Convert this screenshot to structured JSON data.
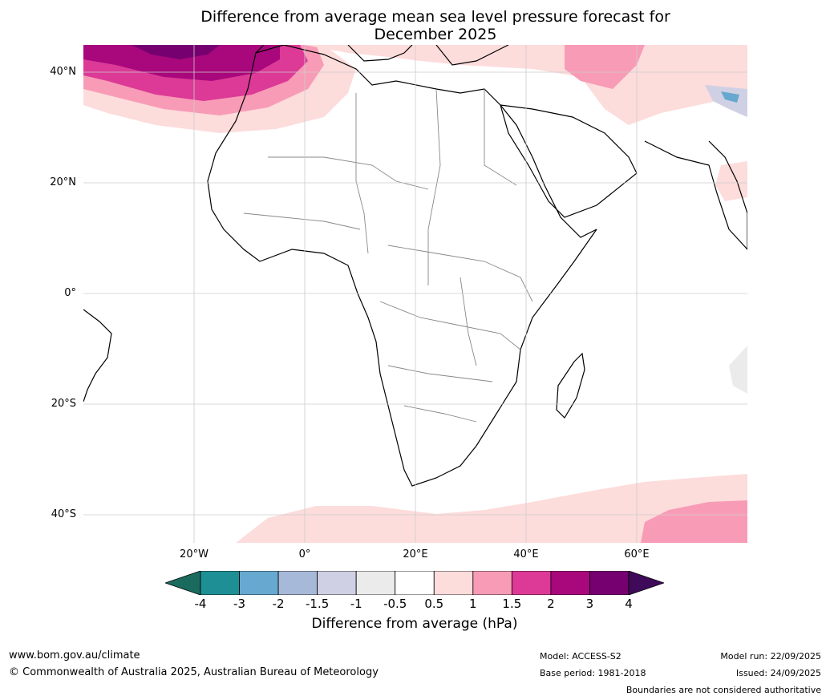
{
  "title_line1": "Difference from average mean sea level pressure forecast for",
  "title_line2": "December 2025",
  "map": {
    "lat_labels": [
      "40°N",
      "20°N",
      "0°",
      "20°S",
      "40°S"
    ],
    "lon_labels": [
      "20°W",
      "0°",
      "20°E",
      "40°E",
      "60°E"
    ]
  },
  "colorbar": {
    "ticks": [
      "-4",
      "-3",
      "-2",
      "-1.5",
      "-1",
      "-0.5",
      "0.5",
      "1",
      "1.5",
      "2",
      "3",
      "4"
    ],
    "colors": [
      "#1a6b5e",
      "#1f8f96",
      "#66a8cf",
      "#a7b9d9",
      "#d0d0e4",
      "#ebebeb",
      "#ffffff",
      "#fddcdc",
      "#f89bb6",
      "#dc3a96",
      "#a8087c",
      "#760070",
      "#3f0a59"
    ],
    "label": "Difference from average (hPa)"
  },
  "footer": {
    "url": "www.bom.gov.au/climate",
    "copyright": "© Commonwealth of Australia 2025, Australian Bureau of Meteorology",
    "model": "Model: ACCESS-S2",
    "base_period": "Base period: 1981-2018",
    "model_run": "Model run: 22/09/2025",
    "issued": "Issued: 24/09/2025",
    "disclaimer": "Boundaries are not considered authoritative"
  }
}
